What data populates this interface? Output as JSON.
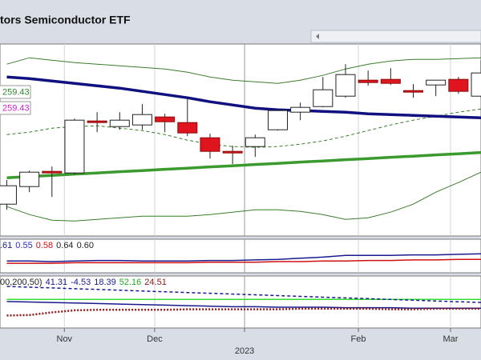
{
  "chart_data": [
    {
      "type": "candlestick",
      "title": "tors Semiconductor ETF",
      "categories": [
        null,
        null,
        null,
        null,
        null,
        null,
        null,
        null,
        null,
        null,
        null,
        null,
        null,
        null,
        null,
        null,
        null,
        null,
        null,
        null,
        null,
        null
      ],
      "open": [
        191.9,
        202.9,
        212.4,
        211.4,
        243.9,
        240.4,
        241.4,
        246.4,
        242.9,
        233.4,
        224.9,
        227.9,
        238.4,
        249.4,
        252.9,
        259.4,
        269.4,
        269.9,
        262.9,
        266.4,
        269.9,
        259.4
      ],
      "high": [
        207.0,
        212.9,
        215.4,
        245.4,
        249.4,
        249.4,
        254.4,
        248.4,
        258.4,
        235.9,
        228.4,
        235.4,
        251.4,
        255.4,
        271.4,
        279.4,
        275.4,
        276.9,
        266.9,
        269.4,
        271.4,
        281.9
      ],
      "low": [
        188.4,
        199.4,
        196.4,
        210.4,
        236.9,
        238.4,
        238.4,
        236.9,
        234.4,
        220.4,
        216.9,
        221.4,
        237.9,
        244.4,
        252.4,
        258.4,
        265.9,
        266.4,
        258.4,
        259.4,
        260.9,
        258.4
      ],
      "close": [
        203.4,
        211.9,
        211.4,
        244.4,
        242.9,
        244.4,
        247.9,
        243.4,
        236.4,
        224.9,
        223.9,
        233.4,
        250.4,
        252.4,
        263.4,
        272.9,
        267.9,
        267.4,
        261.9,
        269.4,
        262.4,
        273.9
      ],
      "up_color": "#ffffff",
      "down_color": "#e0141e",
      "overlays": [
        {
          "color": "#3a7d2c",
          "width": 1,
          "style": "solid",
          "values": [
            279.4,
            283.4,
            281.9,
            280.4,
            279.4,
            278.4,
            277.4,
            276.4,
            274.4,
            271.4,
            269.4,
            268.4,
            267.4,
            269.4,
            272.4,
            276.4,
            279.4,
            281.4,
            282.4,
            282.4,
            282.9,
            283.4
          ]
        },
        {
          "color": "#3a7d2c",
          "width": 1,
          "style": "dashed",
          "values": [
            235.4,
            236.9,
            239.4,
            240.4,
            240.9,
            239.4,
            237.9,
            235.4,
            231.9,
            229.4,
            227.9,
            227.4,
            227.9,
            229.4,
            231.4,
            234.4,
            237.9,
            241.4,
            244.4,
            246.9,
            249.4,
            251.4
          ]
        },
        {
          "color": "#3a7d2c",
          "width": 1,
          "style": "solid",
          "values": [
            190.4,
            185.4,
            181.9,
            181.4,
            182.4,
            183.4,
            184.4,
            184.4,
            184.4,
            185.4,
            186.9,
            188.4,
            188.4,
            187.4,
            185.4,
            182.4,
            183.4,
            186.9,
            191.9,
            199.4,
            205.4,
            211.9
          ]
        },
        {
          "color": "#101080",
          "width": 3.5,
          "style": "solid",
          "values": [
            271.4,
            270.4,
            268.9,
            267.4,
            265.9,
            264.4,
            262.4,
            260.4,
            258.4,
            255.9,
            253.9,
            251.9,
            250.9,
            250.4,
            249.9,
            249.4,
            248.4,
            247.9,
            247.4,
            246.9,
            246.4,
            245.9
          ]
        },
        {
          "color": "#3b9a2e",
          "width": 3.5,
          "style": "solid",
          "values": [
            208.4,
            209.2,
            209.9,
            210.7,
            211.4,
            212.2,
            212.9,
            213.7,
            214.4,
            215.2,
            215.9,
            216.7,
            217.4,
            218.2,
            218.9,
            219.7,
            220.4,
            221.2,
            221.9,
            222.7,
            223.4,
            224.2
          ]
        }
      ],
      "annotations": [
        {
          "text": "259.43",
          "color": "#2e8b2e"
        },
        {
          "text": "259.43",
          "color": "#d020d0"
        }
      ],
      "xlim": [
        -0.3,
        21
      ],
      "xticks": [
        {
          "value": 2.55,
          "label": "Nov"
        },
        {
          "value": 6.55,
          "label": "Dec"
        },
        {
          "value": 10.53,
          "label": "2023",
          "major": true
        },
        {
          "value": 15.57,
          "label": "Feb"
        },
        {
          "value": 19.65,
          "label": "Mar"
        }
      ],
      "ylim": [
        172,
        292
      ]
    },
    {
      "type": "line",
      "categories": [
        null,
        null,
        null,
        null,
        null,
        null,
        null,
        null,
        null,
        null,
        null,
        null,
        null,
        null,
        null,
        null,
        null,
        null,
        null,
        null,
        null,
        null
      ],
      "labels": [
        {
          "text": ".61",
          "color": "#1a1a90"
        },
        {
          "text": "0.55",
          "color": "#2b2bd0"
        },
        {
          "text": "0.58",
          "color": "#d01010"
        },
        {
          "text": "0.64",
          "color": "#222222"
        },
        {
          "text": "0.60",
          "color": "#222222"
        }
      ],
      "series": [
        {
          "color": "#1a1a90",
          "style": "solid",
          "values": [
            0.41,
            0.41,
            0.4,
            0.41,
            0.42,
            0.42,
            0.41,
            0.41,
            0.41,
            0.42,
            0.42,
            0.43,
            0.44,
            0.46,
            0.48,
            0.51,
            0.51,
            0.51,
            0.52,
            0.52,
            0.53,
            0.54
          ]
        },
        {
          "color": "#d01010",
          "style": "solid",
          "values": [
            0.37,
            0.37,
            0.37,
            0.38,
            0.38,
            0.38,
            0.38,
            0.38,
            0.38,
            0.39,
            0.39,
            0.39,
            0.4,
            0.4,
            0.41,
            0.41,
            0.42,
            0.42,
            0.43,
            0.43,
            0.44,
            0.44
          ]
        }
      ],
      "ylim": [
        0.2,
        0.8
      ]
    },
    {
      "type": "line",
      "categories": [
        null,
        null,
        null,
        null,
        null,
        null,
        null,
        null,
        null,
        null,
        null,
        null,
        null,
        null,
        null,
        null,
        null,
        null,
        null,
        null,
        null,
        null
      ],
      "labels": [
        {
          "text": "00,200,50)",
          "color": "#222222"
        },
        {
          "text": "41.31",
          "color": "#1a1a90"
        },
        {
          "text": "-4.53",
          "color": "#1a1a90"
        },
        {
          "text": "18.39",
          "color": "#1a1a90"
        },
        {
          "text": "52.16",
          "color": "#22aa22"
        },
        {
          "text": "24.51",
          "color": "#8b1a1a"
        }
      ],
      "series": [
        {
          "color": "#33dd33",
          "style": "solid",
          "values": [
            55,
            55,
            55,
            55,
            55,
            55,
            55,
            55,
            55,
            55,
            55,
            55,
            55,
            55,
            55,
            55,
            55,
            55,
            55,
            55,
            55,
            55
          ]
        },
        {
          "color": "#1a1a90",
          "style": "dashed",
          "values": [
            80,
            78.5,
            77,
            75.6,
            74.1,
            72.6,
            71.1,
            69.7,
            68.2,
            66.7,
            65.2,
            63.8,
            62.3,
            60.8,
            59.3,
            57.9,
            56.4,
            54.9,
            53.4,
            52,
            50.5,
            49
          ]
        },
        {
          "color": "#1a1a90",
          "style": "solid",
          "values": [
            51,
            50,
            49,
            48,
            47,
            46,
            45,
            44,
            43,
            42,
            41,
            41,
            40,
            40,
            40,
            39,
            39,
            39,
            38,
            38,
            38,
            38
          ]
        },
        {
          "color": "#8b1a1a",
          "style": "dotted",
          "values": [
            24,
            25,
            30,
            34,
            35,
            35,
            35,
            35,
            36,
            36,
            36,
            36,
            36,
            37,
            37,
            37,
            37,
            36,
            36,
            37,
            37,
            37
          ]
        }
      ],
      "ylim": [
        0,
        100
      ]
    }
  ]
}
